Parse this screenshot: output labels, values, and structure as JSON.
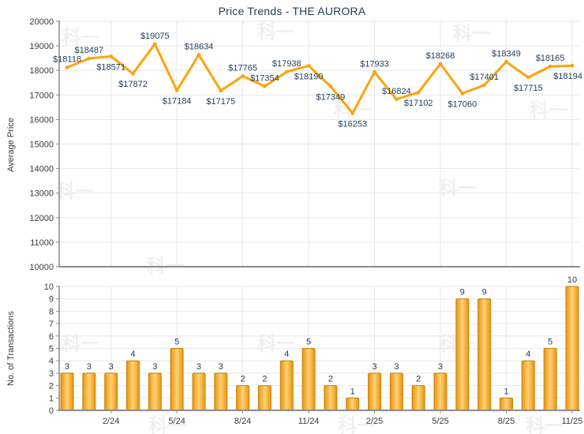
{
  "title": "Price Trends - THE AURORA",
  "watermark_text": "科一",
  "colors": {
    "title": "#1F3B57",
    "line": "#FBA40D",
    "data_label": "#1F3B57",
    "bar_fill_edge": "#E8940C",
    "bar_fill_center": "#FFD175",
    "bar_border": "#C98208",
    "grid": "#E7E7E7",
    "axis": "#8C8C8C",
    "tick_text": "#3A3A3A",
    "watermark": "#F0F0F0"
  },
  "chart_data": [
    {
      "type": "line",
      "title": "Price Trends - THE AURORA",
      "ylabel": "Average Price",
      "ylim": [
        10000,
        20000
      ],
      "ytick_step": 1000,
      "ytick_labels": [
        "10000",
        "11000",
        "12000",
        "13000",
        "14000",
        "15000",
        "16000",
        "17000",
        "18000",
        "19000",
        "20000"
      ],
      "values": [
        18118,
        18487,
        18571,
        17872,
        19075,
        17184,
        18634,
        17175,
        17765,
        17354,
        17938,
        18190,
        17349,
        16253,
        17933,
        16824,
        17102,
        18268,
        17060,
        17401,
        18349,
        17715,
        18165,
        18194
      ],
      "point_labels": [
        "$18118",
        "$18487",
        "$18571",
        "$17872",
        "$19075",
        "$17184",
        "$18634",
        "$17175",
        "$17765",
        "$17354",
        "$17938",
        "$18190",
        "$17349",
        "$16253",
        "$17933",
        "$16824",
        "$17102",
        "$18268",
        "$17060",
        "$17401",
        "$18349",
        "$17715",
        "$18165",
        "$18194"
      ],
      "grid": true,
      "legend": "none"
    },
    {
      "type": "bar",
      "ylabel": "No. of Transactions",
      "ylim": [
        0,
        10
      ],
      "ytick_step": 1,
      "ytick_labels": [
        "0",
        "1",
        "2",
        "3",
        "4",
        "5",
        "6",
        "7",
        "8",
        "9",
        "10"
      ],
      "values": [
        3,
        3,
        3,
        4,
        3,
        5,
        3,
        3,
        2,
        2,
        4,
        5,
        2,
        1,
        3,
        3,
        2,
        3,
        9,
        9,
        1,
        4,
        5,
        10
      ],
      "bar_labels": [
        "3",
        "3",
        "3",
        "4",
        "3",
        "5",
        "3",
        "3",
        "2",
        "2",
        "4",
        "5",
        "2",
        "1",
        "3",
        "3",
        "2",
        "3",
        "9",
        "9",
        "1",
        "4",
        "5",
        "10"
      ],
      "x_tick_labels": [
        "2/24",
        "5/24",
        "8/24",
        "11/24",
        "2/25",
        "5/25",
        "8/25",
        "11/25"
      ],
      "x_tick_indices": [
        2,
        5,
        8,
        11,
        14,
        17,
        20,
        23
      ],
      "grid": true,
      "legend": "none"
    }
  ]
}
